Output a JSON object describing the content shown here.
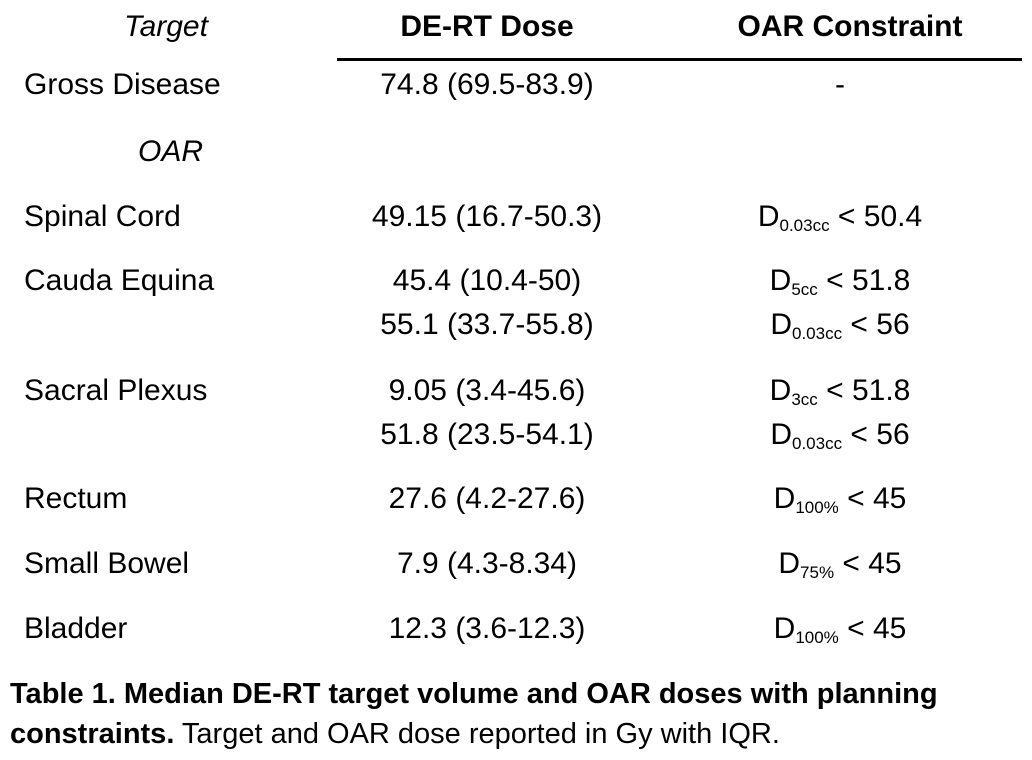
{
  "header": {
    "target": "Target",
    "dose": "DE-RT Dose",
    "constraint": "OAR Constraint"
  },
  "rows": [
    {
      "label": "Gross Disease",
      "doses": [
        "74.8 (69.5-83.9)"
      ],
      "constraints": [
        {
          "base": "-",
          "sub": "",
          "rest": ""
        }
      ]
    },
    {
      "label": "Spinal Cord",
      "doses": [
        "49.15 (16.7-50.3)"
      ],
      "constraints": [
        {
          "base": "D",
          "sub": "0.03cc",
          "rest": " < 50.4"
        }
      ]
    },
    {
      "label": "Cauda Equina",
      "doses": [
        "45.4 (10.4-50)",
        "55.1 (33.7-55.8)"
      ],
      "constraints": [
        {
          "base": "D",
          "sub": "5cc",
          "rest": " < 51.8"
        },
        {
          "base": "D",
          "sub": "0.03cc",
          "rest": " < 56"
        }
      ]
    },
    {
      "label": "Sacral Plexus",
      "doses": [
        "9.05 (3.4-45.6)",
        "51.8 (23.5-54.1)"
      ],
      "constraints": [
        {
          "base": "D",
          "sub": "3cc",
          "rest": " < 51.8"
        },
        {
          "base": "D",
          "sub": "0.03cc",
          "rest": " < 56"
        }
      ]
    },
    {
      "label": "Rectum",
      "doses": [
        "27.6 (4.2-27.6)"
      ],
      "constraints": [
        {
          "base": "D",
          "sub": "100%",
          "rest": " < 45"
        }
      ]
    },
    {
      "label": "Small Bowel",
      "doses": [
        "7.9 (4.3-8.34)"
      ],
      "constraints": [
        {
          "base": "D",
          "sub": "75%",
          "rest": " < 45"
        }
      ]
    },
    {
      "label": "Bladder",
      "doses": [
        "12.3 (3.6-12.3)"
      ],
      "constraints": [
        {
          "base": "D",
          "sub": "100%",
          "rest": " < 45"
        }
      ]
    }
  ],
  "section_label": "OAR",
  "caption": {
    "bold": "Table 1. Median DE-RT target volume and OAR doses with planning constraints.",
    "normal": " Target and OAR dose reported in Gy with IQR."
  }
}
